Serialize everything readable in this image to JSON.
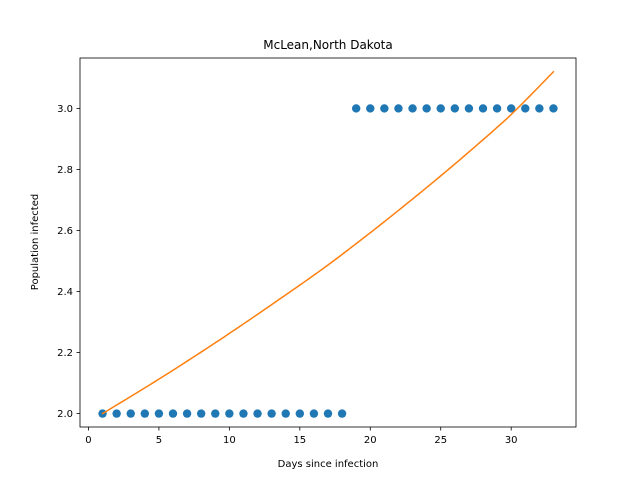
{
  "chart_data": {
    "type": "scatter",
    "title": "McLean,North Dakota",
    "xlabel": "Days since infection",
    "ylabel": "Population infected",
    "xlim": [
      -0.6,
      34.6
    ],
    "ylim": [
      1.9561,
      3.1653
    ],
    "xticks": [
      0,
      5,
      10,
      15,
      20,
      25,
      30
    ],
    "yticks": [
      2.0,
      2.2,
      2.4,
      2.6,
      2.8,
      3.0
    ],
    "xtick_labels": [
      "0",
      "5",
      "10",
      "15",
      "20",
      "25",
      "30"
    ],
    "ytick_labels": [
      "2.0",
      "2.2",
      "2.4",
      "2.6",
      "2.8",
      "3.0"
    ],
    "grid": false,
    "legend": "none",
    "series": [
      {
        "type": "scatter",
        "color": "#1f77b4",
        "x": [
          1,
          2,
          3,
          4,
          5,
          6,
          7,
          8,
          9,
          10,
          11,
          12,
          13,
          14,
          15,
          16,
          17,
          18,
          19,
          20,
          21,
          22,
          23,
          24,
          25,
          26,
          27,
          28,
          29,
          30,
          31,
          32,
          33
        ],
        "y": [
          2,
          2,
          2,
          2,
          2,
          2,
          2,
          2,
          2,
          2,
          2,
          2,
          2,
          2,
          2,
          2,
          2,
          2,
          3,
          3,
          3,
          3,
          3,
          3,
          3,
          3,
          3,
          3,
          3,
          3,
          3,
          3,
          3
        ]
      },
      {
        "type": "line",
        "color": "#ff7f0e",
        "x": [
          1,
          5,
          9,
          13,
          17,
          19,
          21,
          25,
          29,
          30,
          33
        ],
        "y": [
          2.0,
          2.113,
          2.232,
          2.357,
          2.487,
          2.557,
          2.629,
          2.779,
          2.938,
          2.98,
          3.12
        ]
      }
    ]
  }
}
